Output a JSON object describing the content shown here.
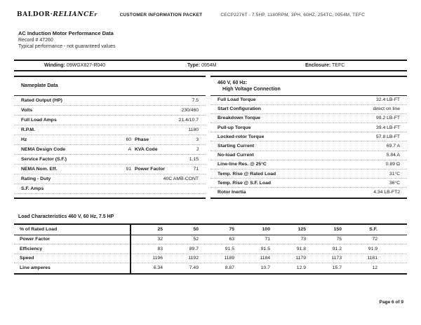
{
  "header": {
    "logo_baldor": "BALDOR",
    "logo_dot": "·",
    "logo_reliance": "RELIANCE",
    "logo_reg": "r",
    "doc_type": "CUSTOMER INFORMATION PACKET",
    "doc_ref": "CECP2276T - 7.5HP, 1180RPM, 3PH, 60HZ, 254TC, 0954M, TEFC"
  },
  "title": {
    "line1": "AC Induction Motor Performance Data",
    "line2": "Record # 47260",
    "line3": "Typical performance - not guaranteed values"
  },
  "winding_bar": {
    "winding_label": "Winding:",
    "winding_value": "09WGX827-R040",
    "type_label": "Type:",
    "type_value": "0954M",
    "enclosure_label": "Enclosure:",
    "enclosure_value": "TEFC"
  },
  "nameplate": {
    "header": "Nameplate Data",
    "rows": [
      {
        "label": "Rated Output (HP)",
        "value": "7.5"
      },
      {
        "label": "Volts",
        "value": "230/460"
      },
      {
        "label": "Full Load Amps",
        "value": "21.4/10.7"
      },
      {
        "label": "R.P.M.",
        "value": "1180"
      },
      {
        "label": "Hz",
        "value": "60",
        "label2": "Phase",
        "value2": "3"
      },
      {
        "label": "NEMA Design Code",
        "value": "A",
        "label2": "KVA Code",
        "value2": "J"
      },
      {
        "label": "Service Factor (S.F.)",
        "value": "1.15"
      },
      {
        "label": "NEMA Nom. Eff.",
        "value": "91",
        "label2": "Power Factor",
        "value2": "71"
      },
      {
        "label": "Rating - Duty",
        "value": "40C AMB-CONT"
      },
      {
        "label": "S.F. Amps",
        "value": ""
      }
    ]
  },
  "hv_connection": {
    "header_line1": "460 V, 60 Hz:",
    "header_line2": "High Voltage Connection",
    "rows": [
      {
        "label": "Full Load Torque",
        "value": "32.4 LB-FT"
      },
      {
        "label": "Start Configuration",
        "value": "direct on line"
      },
      {
        "label": "Breakdown Torque",
        "value": "99.2 LB-FT"
      },
      {
        "label": "Pull-up Torque",
        "value": "39.4 LB-FT"
      },
      {
        "label": "Locked-rotor Torque",
        "value": "57.8 LB-FT"
      },
      {
        "label": "Starting Current",
        "value": "69.7 A"
      },
      {
        "label": "No-load Current",
        "value": "5.84 A"
      },
      {
        "label": "Line-line Res. @ 25°C",
        "value": "0.89 Ω"
      },
      {
        "label": "Temp. Rise @ Rated Load",
        "value": "31°C"
      },
      {
        "label": "Temp. Rise @ S.F. Load",
        "value": "36°C"
      },
      {
        "label": "Rotor Inertia",
        "value": "4.34 LB-FT2"
      }
    ]
  },
  "load_characteristics": {
    "title": "Load Characteristics 460 V, 60 Hz, 7.5 HP",
    "header_label": "% of Rated Load",
    "columns": [
      "25",
      "50",
      "75",
      "100",
      "125",
      "150",
      "S.F."
    ],
    "rows": [
      {
        "label": "Power Factor",
        "values": [
          "32",
          "52",
          "63",
          "71",
          "73",
          "75",
          "72"
        ]
      },
      {
        "label": "Efficiency",
        "values": [
          "83",
          "89.7",
          "91.5",
          "91.5",
          "91.8",
          "91.2",
          "91.9"
        ]
      },
      {
        "label": "Speed",
        "values": [
          "1196",
          "1192",
          "1189",
          "1184",
          "1179",
          "1173",
          "1181"
        ]
      },
      {
        "label": "Line amperes",
        "values": [
          "6.34",
          "7.49",
          "8.87",
          "10.7",
          "12.9",
          "15.7",
          "12"
        ]
      }
    ]
  },
  "footer": {
    "page": "Page 6 of 9"
  }
}
